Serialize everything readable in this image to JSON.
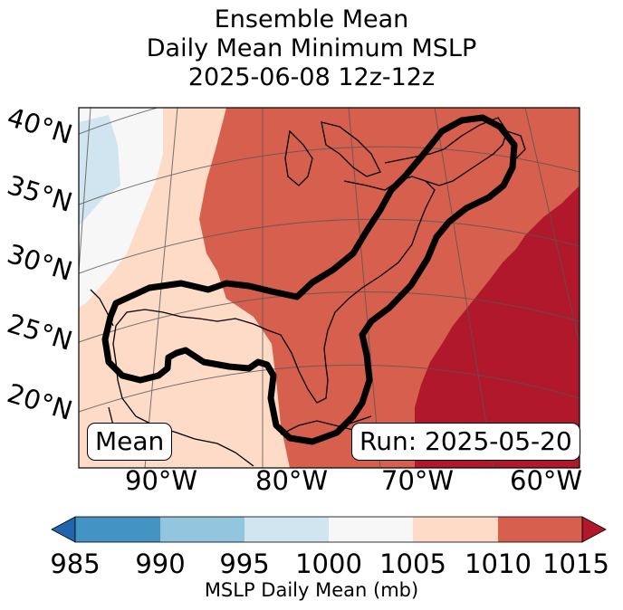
{
  "title": {
    "line1": "Ensemble Mean",
    "line2": "Daily Mean Minimum MSLP",
    "line3": "2025-06-08 12z-12z"
  },
  "map": {
    "lat_labels": [
      "40°N",
      "35°N",
      "30°N",
      "25°N",
      "20°N"
    ],
    "lon_labels": [
      "90°W",
      "80°W",
      "70°W",
      "60°W"
    ],
    "mean_box": "Mean",
    "run_box": "Run: 2025-05-20"
  },
  "colorbar": {
    "levels": [
      "985",
      "990",
      "995",
      "1000",
      "1005",
      "1010",
      "1015"
    ],
    "colors": [
      "#2166ac",
      "#4393c3",
      "#92c5de",
      "#d1e5f0",
      "#f7f7f7",
      "#fddbc7",
      "#d6604d",
      "#b2182b"
    ],
    "label": "MSLP Daily Mean (mb)"
  }
}
